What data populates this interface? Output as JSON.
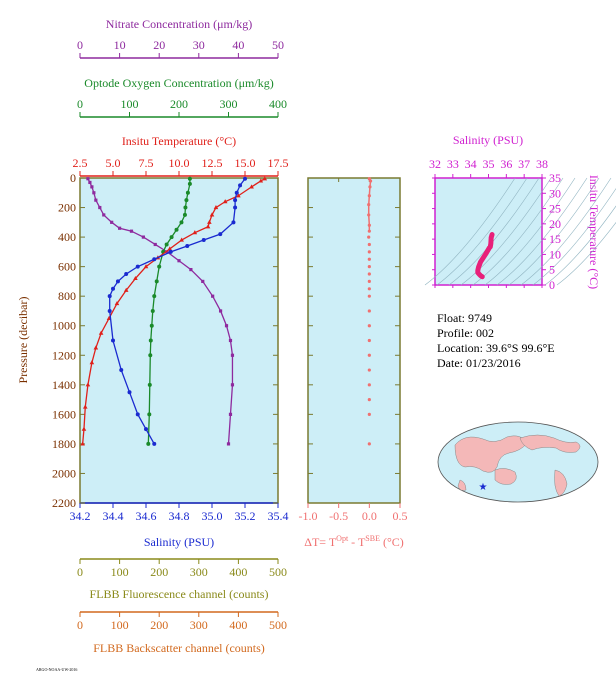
{
  "colors": {
    "nitrate": "#8e2a9e",
    "oxygen": "#1a8a2a",
    "temperature": "#e0201a",
    "salinity": "#1a2ad0",
    "fluorescence": "#8a8a1a",
    "backscatter": "#d2691e",
    "delta_t": "#f07070",
    "ts_axis": "#d020d0",
    "plot_bg": "#cdeef7",
    "axis": "#7a7a30",
    "ts_trace": "#e8207a"
  },
  "axes_titles": {
    "nitrate": "Nitrate Concentration (μm/kg)",
    "oxygen": "Optode Oxygen Concentration (μm/kg)",
    "temperature": "Insitu Temperature (°C)",
    "salinity": "Salinity (PSU)",
    "pressure": "Pressure (decibar)",
    "fluorescence": "FLBB Fluorescence channel (counts)",
    "backscatter": "FLBB Backscatter channel (counts)",
    "delta_t_base": "ΔT= T",
    "delta_t_sup1": "Opt",
    "delta_t_mid": " - T",
    "delta_t_sup2": "SBE",
    "delta_t_unit": " (°C)",
    "ts_salinity": "Salinity (PSU)",
    "ts_temperature": "Insitu Temperature (°C)"
  },
  "ticks": {
    "nitrate": [
      "0",
      "10",
      "20",
      "30",
      "40",
      "50"
    ],
    "oxygen": [
      "0",
      "100",
      "200",
      "300",
      "400"
    ],
    "temperature": [
      "2.5",
      "5.0",
      "7.5",
      "10.0",
      "12.5",
      "15.0",
      "17.5"
    ],
    "pressure": [
      "0",
      "200",
      "400",
      "600",
      "800",
      "1000",
      "1200",
      "1400",
      "1600",
      "1800",
      "2000",
      "2200"
    ],
    "salinity": [
      "34.2",
      "34.4",
      "34.6",
      "34.8",
      "35.0",
      "35.2",
      "35.4"
    ],
    "delta_t": [
      "-1.0",
      "-0.5",
      "0.0",
      "0.5"
    ],
    "fluorescence": [
      "0",
      "100",
      "200",
      "300",
      "400",
      "500"
    ],
    "backscatter": [
      "0",
      "100",
      "200",
      "300",
      "400",
      "500"
    ],
    "ts_salinity": [
      "32",
      "33",
      "34",
      "35",
      "36",
      "37",
      "38"
    ],
    "ts_temperature": [
      "0",
      "5",
      "10",
      "15",
      "20",
      "25",
      "30",
      "35"
    ]
  },
  "info": {
    "float": "Float:  9749",
    "profile": "Profile:  002",
    "location": "Location:  39.6°S  99.6°E",
    "date": "Date:  01/23/2016"
  },
  "footer_tiny": "ARGO-NOAA-UW-2016",
  "chart_data": [
    {
      "type": "line",
      "name": "Nitrate",
      "x_unit": "μm/kg",
      "xlim": [
        0,
        50
      ],
      "y_unit": "decibar",
      "ylim": [
        2200,
        0
      ],
      "x": [
        2,
        2.5,
        3,
        3.5,
        4,
        5,
        6,
        8,
        10,
        13,
        16,
        19,
        22,
        25,
        28,
        31,
        33.5,
        35.5,
        37,
        38,
        38.5,
        38.5,
        38,
        37.5
      ],
      "y": [
        5,
        30,
        60,
        100,
        150,
        200,
        250,
        300,
        340,
        360,
        400,
        450,
        500,
        560,
        620,
        700,
        800,
        900,
        1000,
        1100,
        1200,
        1400,
        1600,
        1800
      ]
    },
    {
      "type": "line",
      "name": "Oxygen",
      "x_unit": "μm/kg",
      "xlim": [
        0,
        400
      ],
      "y_unit": "decibar",
      "ylim": [
        2200,
        0
      ],
      "x": [
        222,
        222,
        218,
        215,
        213,
        212,
        205,
        195,
        185,
        175,
        168,
        160,
        155,
        150,
        147,
        145,
        143,
        142,
        141,
        140,
        138
      ],
      "y": [
        5,
        40,
        100,
        150,
        200,
        250,
        300,
        350,
        400,
        450,
        500,
        600,
        700,
        800,
        900,
        1000,
        1100,
        1200,
        1400,
        1600,
        1800
      ]
    },
    {
      "type": "line",
      "name": "Temperature",
      "x_unit": "°C",
      "xlim": [
        2.5,
        17.5
      ],
      "y_unit": "decibar",
      "ylim": [
        2200,
        0
      ],
      "x": [
        16.5,
        16.2,
        15.5,
        14.5,
        13.5,
        12.8,
        12.5,
        12.3,
        12.2,
        11.2,
        10.2,
        9.3,
        8.4,
        7.5,
        6.7,
        6.0,
        5.3,
        4.7,
        4.1,
        3.7,
        3.4,
        3.1,
        2.9,
        2.8,
        2.7
      ],
      "y": [
        5,
        20,
        60,
        120,
        160,
        200,
        250,
        300,
        330,
        370,
        420,
        480,
        540,
        600,
        680,
        760,
        850,
        950,
        1050,
        1150,
        1250,
        1400,
        1550,
        1700,
        1800
      ]
    },
    {
      "type": "line",
      "name": "Salinity",
      "x_unit": "PSU",
      "xlim": [
        34.2,
        35.4
      ],
      "y_unit": "decibar",
      "ylim": [
        2200,
        0
      ],
      "x": [
        35.2,
        35.17,
        35.15,
        35.14,
        35.14,
        35.13,
        35.05,
        34.95,
        34.85,
        34.75,
        34.65,
        34.55,
        34.48,
        34.43,
        34.4,
        34.38,
        34.38,
        34.4,
        34.45,
        34.5,
        34.55,
        34.6,
        34.65
      ],
      "y": [
        5,
        50,
        100,
        150,
        200,
        300,
        380,
        420,
        460,
        500,
        550,
        600,
        650,
        700,
        750,
        800,
        900,
        1100,
        1300,
        1450,
        1600,
        1700,
        1800
      ]
    },
    {
      "type": "scatter",
      "name": "Delta T",
      "x_unit": "°C",
      "xlim": [
        -1.0,
        0.5
      ],
      "y_unit": "decibar",
      "ylim": [
        2200,
        0
      ],
      "x": [
        0.0,
        0.02,
        0.01,
        0.0,
        -0.01,
        -0.01,
        0.0,
        0.0,
        -0.01,
        0.0,
        0.0,
        0.0,
        0.0,
        0.0,
        0.0,
        0.0,
        0.0,
        0.0,
        0.0,
        0.0,
        0.0,
        0.0,
        0.0,
        0.0,
        0.0,
        0.0
      ],
      "y": [
        5,
        20,
        60,
        120,
        180,
        250,
        320,
        360,
        400,
        450,
        500,
        550,
        600,
        650,
        700,
        750,
        800,
        900,
        1000,
        1100,
        1200,
        1300,
        1400,
        1500,
        1600,
        1800
      ]
    },
    {
      "type": "scatter",
      "name": "T-S",
      "x_unit": "PSU",
      "xlim": [
        32,
        38
      ],
      "y_unit": "°C",
      "ylim": [
        0,
        35
      ],
      "x": [
        35.2,
        35.15,
        35.14,
        35.13,
        35.1,
        35.05,
        34.95,
        34.85,
        34.75,
        34.65,
        34.55,
        34.5,
        34.45,
        34.42,
        34.4,
        34.4,
        34.45,
        34.5,
        34.55,
        34.6,
        34.65
      ],
      "y": [
        16.5,
        15.5,
        14.5,
        13.5,
        12.5,
        12.2,
        11.2,
        10.2,
        9.3,
        8.4,
        7.5,
        6.7,
        6.0,
        5.3,
        4.7,
        4.1,
        3.7,
        3.4,
        3.1,
        2.9,
        2.7
      ]
    }
  ]
}
